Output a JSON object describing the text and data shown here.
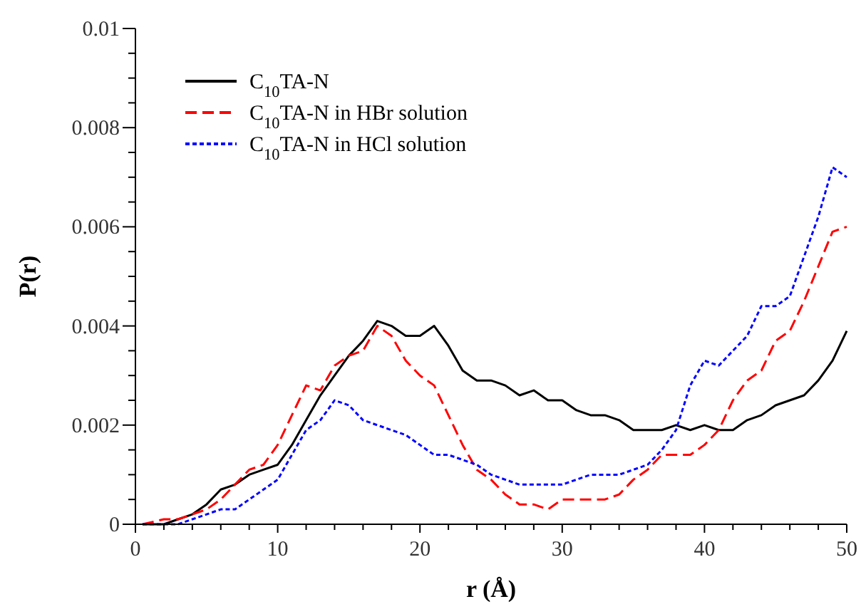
{
  "chart_data": {
    "type": "line",
    "xlabel": "r (Å)",
    "ylabel": "P(r)",
    "legend": "top left",
    "grid": false,
    "xlim": [
      0,
      50
    ],
    "ylim": [
      0,
      0.01
    ],
    "xticks": [
      0,
      {
        "value": 2,
        "label": null
      },
      {
        "value": 4,
        "label": null
      },
      {
        "value": 6,
        "label": null
      },
      {
        "value": 8,
        "label": null
      },
      10,
      {
        "value": 12,
        "label": null
      },
      {
        "value": 14,
        "label": null
      },
      {
        "value": 16,
        "label": null
      },
      {
        "value": 18,
        "label": null
      },
      20,
      {
        "value": 22,
        "label": null
      },
      {
        "value": 24,
        "label": null
      },
      {
        "value": 26,
        "label": null
      },
      {
        "value": 28,
        "label": null
      },
      30,
      {
        "value": 32,
        "label": null
      },
      {
        "value": 34,
        "label": null
      },
      {
        "value": 36,
        "label": null
      },
      {
        "value": 38,
        "label": null
      },
      40,
      {
        "value": 42,
        "label": null
      },
      {
        "value": 44,
        "label": null
      },
      {
        "value": 46,
        "label": null
      },
      {
        "value": 48,
        "label": null
      },
      50
    ],
    "yticks": [
      0,
      {
        "value": 0.0005,
        "label": null
      },
      {
        "value": 0.001,
        "label": null
      },
      {
        "value": 0.0015,
        "label": null
      },
      0.002,
      {
        "value": 0.0025,
        "label": null
      },
      {
        "value": 0.003,
        "label": null
      },
      {
        "value": 0.0035,
        "label": null
      },
      0.004,
      {
        "value": 0.0045,
        "label": null
      },
      {
        "value": 0.005,
        "label": null
      },
      {
        "value": 0.0055,
        "label": null
      },
      0.006,
      {
        "value": 0.0065,
        "label": null
      },
      {
        "value": 0.007,
        "label": null
      },
      {
        "value": 0.0075,
        "label": null
      },
      0.008,
      {
        "value": 0.0085,
        "label": null
      },
      {
        "value": 0.009,
        "label": null
      },
      {
        "value": 0.0095,
        "label": null
      },
      0.01
    ],
    "x": [
      0.5,
      2,
      3,
      4,
      5,
      6,
      7,
      8,
      9,
      10,
      11,
      12,
      13,
      14,
      15,
      16,
      17,
      18,
      19,
      20,
      21,
      22,
      23,
      24,
      25,
      26,
      27,
      28,
      29,
      30,
      31,
      32,
      33,
      34,
      35,
      36,
      37,
      38,
      39,
      40,
      41,
      42,
      43,
      44,
      45,
      46,
      47,
      48,
      49,
      50
    ],
    "series": [
      {
        "name": "C$_{10}$TA-N",
        "color": "#000000",
        "line_style": "solid",
        "values": [
          0,
          0,
          0.0001,
          0.0002,
          0.0004,
          0.0007,
          0.0008,
          0.001,
          0.0011,
          0.0012,
          0.0016,
          0.0021,
          0.0026,
          0.003,
          0.0034,
          0.0037,
          0.0041,
          0.004,
          0.0038,
          0.0038,
          0.004,
          0.0036,
          0.0031,
          0.0029,
          0.0029,
          0.0028,
          0.0026,
          0.0027,
          0.0025,
          0.0025,
          0.0023,
          0.0022,
          0.0022,
          0.0021,
          0.0019,
          0.0019,
          0.0019,
          0.002,
          0.0019,
          0.002,
          0.0019,
          0.0019,
          0.0021,
          0.0022,
          0.0024,
          0.0025,
          0.0026,
          0.0029,
          0.0033,
          0.0039
        ]
      },
      {
        "name": "C$_{10}$TA-N in HBr solution",
        "color": "#ff0000",
        "line_style": "dashed",
        "values": [
          0,
          0.0001,
          0.0001,
          0.0002,
          0.0003,
          0.0005,
          0.0008,
          0.0011,
          0.0012,
          0.0016,
          0.0022,
          0.0028,
          0.0027,
          0.0032,
          0.0034,
          0.0035,
          0.004,
          0.0038,
          0.0033,
          0.003,
          0.0028,
          0.0022,
          0.0016,
          0.0011,
          0.0009,
          0.0006,
          0.0004,
          0.0004,
          0.0003,
          0.0005,
          0.0005,
          0.0005,
          0.0005,
          0.0006,
          0.0009,
          0.0011,
          0.0014,
          0.0014,
          0.0014,
          0.0016,
          0.0019,
          0.0025,
          0.0029,
          0.0031,
          0.0037,
          0.0039,
          0.0045,
          0.0052,
          0.0059,
          0.006
        ]
      },
      {
        "name": "C$_{10}$TA-N in HCl solution",
        "color": "#0000ff",
        "line_style": "dotted",
        "values": [
          0,
          0,
          0,
          0.0001,
          0.0002,
          0.0003,
          0.0003,
          0.0005,
          0.0007,
          0.0009,
          0.0014,
          0.0019,
          0.0021,
          0.0025,
          0.0024,
          0.0021,
          0.002,
          0.0019,
          0.0018,
          0.0016,
          0.0014,
          0.0014,
          0.0013,
          0.0012,
          0.001,
          0.0009,
          0.0008,
          0.0008,
          0.0008,
          0.0008,
          0.0009,
          0.001,
          0.001,
          0.001,
          0.0011,
          0.0012,
          0.0015,
          0.0019,
          0.0028,
          0.0033,
          0.0032,
          0.0035,
          0.0038,
          0.0044,
          0.0044,
          0.0046,
          0.0054,
          0.0062,
          0.0072,
          0.007
        ]
      }
    ]
  }
}
